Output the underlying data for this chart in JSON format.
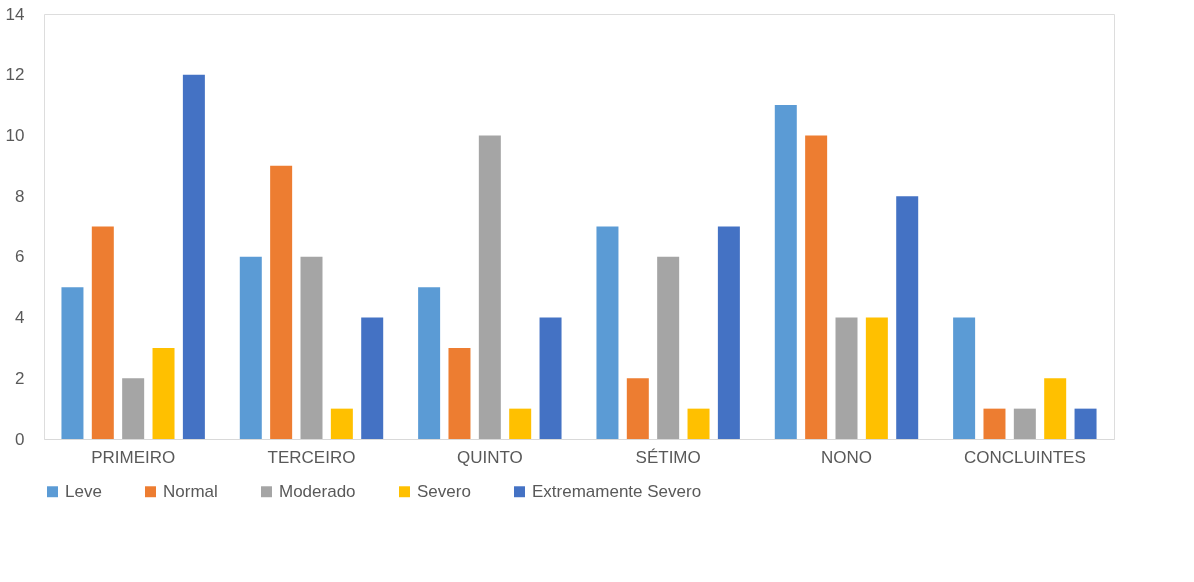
{
  "chart_data": {
    "type": "bar",
    "categories": [
      "PRIMEIRO",
      "TERCEIRO",
      "QUINTO",
      "SÉTIMO",
      "NONO",
      "CONCLUINTES"
    ],
    "series": [
      {
        "name": "Leve",
        "color": "#5b9bd5",
        "values": [
          5,
          6,
          5,
          7,
          11,
          4
        ]
      },
      {
        "name": "Normal",
        "color": "#ed7d31",
        "values": [
          7,
          9,
          3,
          2,
          10,
          1
        ]
      },
      {
        "name": "Moderado",
        "color": "#a5a5a5",
        "values": [
          2,
          6,
          10,
          6,
          4,
          1
        ]
      },
      {
        "name": "Severo",
        "color": "#ffc000",
        "values": [
          3,
          1,
          1,
          1,
          4,
          2
        ]
      },
      {
        "name": "Extremamente Severo",
        "color": "#4472c4",
        "values": [
          12,
          4,
          4,
          7,
          8,
          1
        ]
      }
    ],
    "ylim": [
      0,
      14
    ],
    "yticks": [
      0,
      2,
      4,
      6,
      8,
      10,
      12,
      14
    ],
    "grid": false,
    "legend": "bottom"
  }
}
